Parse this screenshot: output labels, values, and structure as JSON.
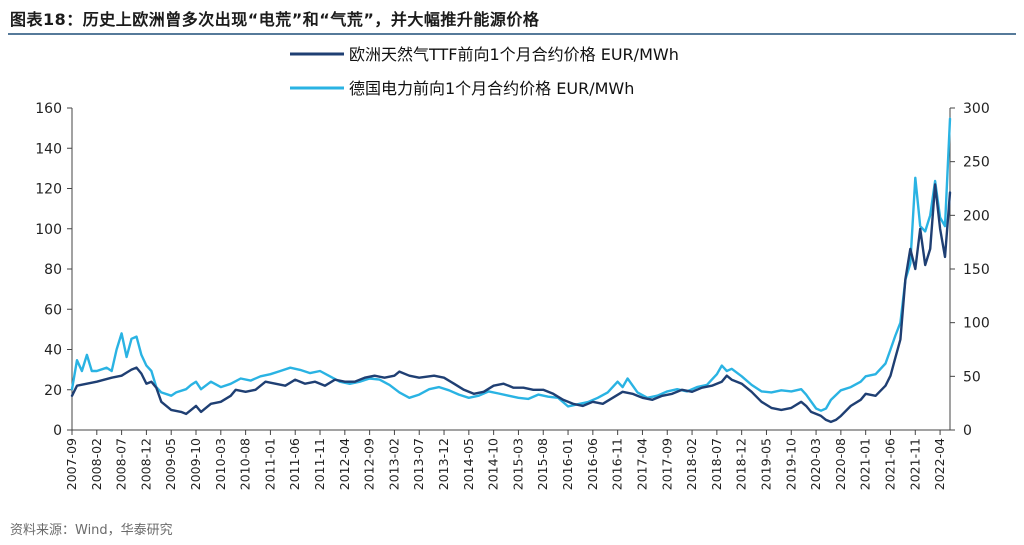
{
  "title": "图表18：历史上欧洲曾多次出现“电荒”和“气荒”，并大幅推升能源价格",
  "source": "资料来源：Wind，华泰研究",
  "colors": {
    "ttf": "#1f3f73",
    "power": "#2ab3e3",
    "rule": "#1f4e79",
    "axis": "#444444"
  },
  "chart_data": {
    "type": "line",
    "left_axis": {
      "ylim": [
        0,
        160
      ],
      "ticks": [
        0,
        20,
        40,
        60,
        80,
        100,
        120,
        140,
        160
      ]
    },
    "right_axis": {
      "ylim": [
        0,
        300
      ],
      "ticks": [
        0,
        50,
        100,
        150,
        200,
        250,
        300
      ]
    },
    "x_tick_labels": [
      "2007-09",
      "2008-02",
      "2008-07",
      "2008-12",
      "2009-05",
      "2009-10",
      "2010-03",
      "2010-08",
      "2011-01",
      "2011-06",
      "2011-11",
      "2012-04",
      "2012-09",
      "2013-02",
      "2013-07",
      "2013-12",
      "2014-05",
      "2014-10",
      "2015-03",
      "2015-08",
      "2016-01",
      "2016-06",
      "2016-11",
      "2017-04",
      "2017-09",
      "2018-02",
      "2018-07",
      "2018-12",
      "2019-05",
      "2019-10",
      "2020-03",
      "2020-08",
      "2021-01",
      "2021-06",
      "2021-11",
      "2022-04"
    ],
    "series": [
      {
        "name": "欧洲天然气TTF前向1个月合约价格 EUR/MWh",
        "axis": "left",
        "points": [
          [
            "2007-09",
            17
          ],
          [
            "2007-10",
            22
          ],
          [
            "2007-12",
            23
          ],
          [
            "2008-02",
            24
          ],
          [
            "2008-05",
            26
          ],
          [
            "2008-07",
            27
          ],
          [
            "2008-09",
            30
          ],
          [
            "2008-10",
            31
          ],
          [
            "2008-11",
            28
          ],
          [
            "2008-12",
            23
          ],
          [
            "2009-01",
            24
          ],
          [
            "2009-02",
            21
          ],
          [
            "2009-03",
            14
          ],
          [
            "2009-05",
            10
          ],
          [
            "2009-07",
            9
          ],
          [
            "2009-08",
            8
          ],
          [
            "2009-09",
            10
          ],
          [
            "2009-10",
            12
          ],
          [
            "2009-11",
            9
          ],
          [
            "2010-01",
            13
          ],
          [
            "2010-03",
            14
          ],
          [
            "2010-05",
            17
          ],
          [
            "2010-06",
            20
          ],
          [
            "2010-08",
            19
          ],
          [
            "2010-10",
            20
          ],
          [
            "2010-12",
            24
          ],
          [
            "2011-02",
            23
          ],
          [
            "2011-04",
            22
          ],
          [
            "2011-06",
            25
          ],
          [
            "2011-08",
            23
          ],
          [
            "2011-10",
            24
          ],
          [
            "2011-12",
            22
          ],
          [
            "2012-02",
            25
          ],
          [
            "2012-04",
            24
          ],
          [
            "2012-06",
            24
          ],
          [
            "2012-08",
            26
          ],
          [
            "2012-10",
            27
          ],
          [
            "2012-12",
            26
          ],
          [
            "2013-02",
            27
          ],
          [
            "2013-03",
            29
          ],
          [
            "2013-05",
            27
          ],
          [
            "2013-07",
            26
          ],
          [
            "2013-10",
            27
          ],
          [
            "2013-12",
            26
          ],
          [
            "2014-02",
            23
          ],
          [
            "2014-04",
            20
          ],
          [
            "2014-06",
            18
          ],
          [
            "2014-08",
            19
          ],
          [
            "2014-10",
            22
          ],
          [
            "2014-12",
            23
          ],
          [
            "2015-02",
            21
          ],
          [
            "2015-04",
            21
          ],
          [
            "2015-06",
            20
          ],
          [
            "2015-08",
            20
          ],
          [
            "2015-10",
            18
          ],
          [
            "2015-12",
            15
          ],
          [
            "2016-02",
            13
          ],
          [
            "2016-04",
            12
          ],
          [
            "2016-06",
            14
          ],
          [
            "2016-08",
            13
          ],
          [
            "2016-10",
            16
          ],
          [
            "2016-12",
            19
          ],
          [
            "2017-02",
            18
          ],
          [
            "2017-04",
            16
          ],
          [
            "2017-06",
            15
          ],
          [
            "2017-08",
            17
          ],
          [
            "2017-10",
            18
          ],
          [
            "2017-12",
            20
          ],
          [
            "2018-02",
            19
          ],
          [
            "2018-04",
            21
          ],
          [
            "2018-06",
            22
          ],
          [
            "2018-08",
            24
          ],
          [
            "2018-09",
            27
          ],
          [
            "2018-10",
            25
          ],
          [
            "2018-12",
            23
          ],
          [
            "2019-02",
            19
          ],
          [
            "2019-04",
            14
          ],
          [
            "2019-06",
            11
          ],
          [
            "2019-08",
            10
          ],
          [
            "2019-10",
            11
          ],
          [
            "2019-12",
            14
          ],
          [
            "2020-01",
            12
          ],
          [
            "2020-02",
            9
          ],
          [
            "2020-04",
            7
          ],
          [
            "2020-05",
            5
          ],
          [
            "2020-06",
            4
          ],
          [
            "2020-07",
            5
          ],
          [
            "2020-08",
            7
          ],
          [
            "2020-10",
            12
          ],
          [
            "2020-12",
            15
          ],
          [
            "2021-01",
            18
          ],
          [
            "2021-03",
            17
          ],
          [
            "2021-05",
            22
          ],
          [
            "2021-06",
            27
          ],
          [
            "2021-07",
            36
          ],
          [
            "2021-08",
            45
          ],
          [
            "2021-09",
            75
          ],
          [
            "2021-10",
            90
          ],
          [
            "2021-11",
            80
          ],
          [
            "2021-12",
            100
          ],
          [
            "2022-01",
            82
          ],
          [
            "2022-02",
            90
          ],
          [
            "2022-03",
            122
          ],
          [
            "2022-04",
            100
          ],
          [
            "2022-05",
            86
          ],
          [
            "2022-06",
            118
          ]
        ]
      },
      {
        "name": "德国电力前向1个月合约价格 EUR/MWh",
        "axis": "right",
        "points": [
          [
            "2007-09",
            38
          ],
          [
            "2007-10",
            65
          ],
          [
            "2007-11",
            55
          ],
          [
            "2007-12",
            70
          ],
          [
            "2008-01",
            55
          ],
          [
            "2008-02",
            55
          ],
          [
            "2008-04",
            58
          ],
          [
            "2008-05",
            55
          ],
          [
            "2008-06",
            75
          ],
          [
            "2008-07",
            90
          ],
          [
            "2008-08",
            68
          ],
          [
            "2008-09",
            85
          ],
          [
            "2008-10",
            87
          ],
          [
            "2008-11",
            70
          ],
          [
            "2008-12",
            60
          ],
          [
            "2009-01",
            55
          ],
          [
            "2009-02",
            40
          ],
          [
            "2009-03",
            35
          ],
          [
            "2009-05",
            32
          ],
          [
            "2009-06",
            35
          ],
          [
            "2009-08",
            38
          ],
          [
            "2009-09",
            42
          ],
          [
            "2009-10",
            45
          ],
          [
            "2009-11",
            38
          ],
          [
            "2010-01",
            45
          ],
          [
            "2010-03",
            40
          ],
          [
            "2010-05",
            43
          ],
          [
            "2010-07",
            48
          ],
          [
            "2010-09",
            46
          ],
          [
            "2010-11",
            50
          ],
          [
            "2011-01",
            52
          ],
          [
            "2011-03",
            55
          ],
          [
            "2011-05",
            58
          ],
          [
            "2011-07",
            56
          ],
          [
            "2011-09",
            53
          ],
          [
            "2011-11",
            55
          ],
          [
            "2012-01",
            50
          ],
          [
            "2012-03",
            45
          ],
          [
            "2012-05",
            43
          ],
          [
            "2012-07",
            45
          ],
          [
            "2012-09",
            48
          ],
          [
            "2012-11",
            47
          ],
          [
            "2013-01",
            42
          ],
          [
            "2013-03",
            35
          ],
          [
            "2013-05",
            30
          ],
          [
            "2013-07",
            33
          ],
          [
            "2013-09",
            38
          ],
          [
            "2013-11",
            40
          ],
          [
            "2014-01",
            37
          ],
          [
            "2014-03",
            33
          ],
          [
            "2014-05",
            30
          ],
          [
            "2014-07",
            32
          ],
          [
            "2014-09",
            36
          ],
          [
            "2014-11",
            34
          ],
          [
            "2015-01",
            32
          ],
          [
            "2015-03",
            30
          ],
          [
            "2015-05",
            29
          ],
          [
            "2015-07",
            33
          ],
          [
            "2015-09",
            31
          ],
          [
            "2015-11",
            30
          ],
          [
            "2016-01",
            22
          ],
          [
            "2016-03",
            24
          ],
          [
            "2016-05",
            26
          ],
          [
            "2016-07",
            30
          ],
          [
            "2016-09",
            35
          ],
          [
            "2016-11",
            45
          ],
          [
            "2016-12",
            40
          ],
          [
            "2017-01",
            48
          ],
          [
            "2017-03",
            35
          ],
          [
            "2017-05",
            30
          ],
          [
            "2017-07",
            32
          ],
          [
            "2017-09",
            36
          ],
          [
            "2017-11",
            38
          ],
          [
            "2018-01",
            36
          ],
          [
            "2018-03",
            40
          ],
          [
            "2018-05",
            42
          ],
          [
            "2018-07",
            52
          ],
          [
            "2018-08",
            60
          ],
          [
            "2018-09",
            55
          ],
          [
            "2018-10",
            57
          ],
          [
            "2018-12",
            50
          ],
          [
            "2019-02",
            42
          ],
          [
            "2019-04",
            36
          ],
          [
            "2019-06",
            35
          ],
          [
            "2019-08",
            37
          ],
          [
            "2019-10",
            36
          ],
          [
            "2019-12",
            38
          ],
          [
            "2020-01",
            33
          ],
          [
            "2020-03",
            20
          ],
          [
            "2020-04",
            18
          ],
          [
            "2020-05",
            20
          ],
          [
            "2020-06",
            28
          ],
          [
            "2020-08",
            37
          ],
          [
            "2020-10",
            40
          ],
          [
            "2020-12",
            45
          ],
          [
            "2021-01",
            50
          ],
          [
            "2021-03",
            52
          ],
          [
            "2021-05",
            62
          ],
          [
            "2021-06",
            75
          ],
          [
            "2021-07",
            88
          ],
          [
            "2021-08",
            100
          ],
          [
            "2021-09",
            140
          ],
          [
            "2021-10",
            155
          ],
          [
            "2021-11",
            235
          ],
          [
            "2021-12",
            190
          ],
          [
            "2022-01",
            185
          ],
          [
            "2022-02",
            200
          ],
          [
            "2022-03",
            232
          ],
          [
            "2022-04",
            198
          ],
          [
            "2022-05",
            190
          ],
          [
            "2022-06",
            290
          ]
        ]
      }
    ]
  }
}
